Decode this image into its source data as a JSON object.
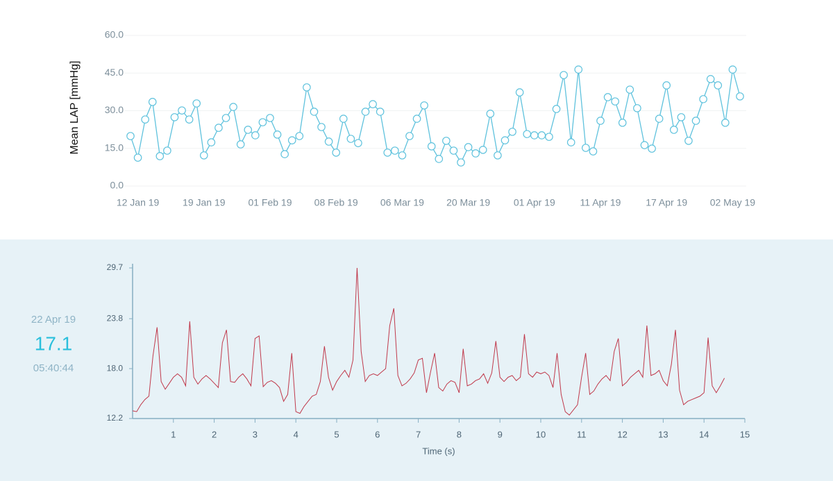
{
  "selection": {
    "date": "22 Apr 19",
    "value": 17.1,
    "time": "05:40:44"
  },
  "chart_data": [
    {
      "type": "line",
      "y_label": "Mean LAP [mmHg]",
      "color": "#5fc2dd",
      "markers": true,
      "grid": true,
      "categories": [
        null,
        "12 Jan 19",
        null,
        null,
        null,
        null,
        null,
        null,
        null,
        null,
        "19 Jan 19",
        null,
        null,
        null,
        null,
        null,
        null,
        null,
        null,
        "01 Feb 19",
        null,
        null,
        null,
        null,
        null,
        null,
        null,
        null,
        "08 Feb 19",
        null,
        null,
        null,
        null,
        null,
        null,
        null,
        null,
        "06 Mar 19",
        null,
        null,
        null,
        null,
        null,
        null,
        null,
        null,
        "20 Mar 19",
        null,
        null,
        null,
        null,
        null,
        null,
        null,
        null,
        "01 Apr 19",
        null,
        null,
        null,
        null,
        null,
        null,
        null,
        null,
        "11 Apr 19",
        null,
        null,
        null,
        null,
        null,
        null,
        null,
        null,
        "17 Apr 19",
        null,
        null,
        null,
        null,
        null,
        null,
        null,
        null,
        "02 May 19",
        null
      ],
      "values": [
        19.9,
        11.3,
        26.5,
        33.5,
        11.9,
        14.1,
        27.4,
        30.1,
        26.5,
        32.9,
        12.2,
        17.4,
        23.2,
        27.1,
        31.5,
        16.6,
        22.4,
        20.2,
        25.4,
        27.1,
        20.5,
        12.7,
        18.2,
        19.9,
        39.3,
        29.6,
        23.5,
        17.7,
        13.3,
        26.8,
        18.8,
        17.1,
        29.6,
        32.6,
        29.6,
        13.3,
        14.1,
        12.2,
        19.9,
        26.8,
        32.1,
        15.8,
        10.8,
        18.0,
        14.1,
        9.4,
        15.5,
        13.0,
        14.4,
        28.8,
        12.2,
        18.2,
        21.6,
        37.3,
        20.7,
        20.2,
        20.2,
        19.6,
        30.7,
        44.2,
        17.4,
        46.4,
        15.2,
        13.8,
        26.0,
        35.4,
        33.7,
        25.2,
        38.4,
        31.0,
        16.3,
        14.9,
        26.8,
        40.1,
        22.4,
        27.4,
        18.0,
        26.0,
        34.6,
        42.6,
        40.1,
        25.2,
        46.4,
        35.7
      ],
      "ylim": [
        0,
        60
      ],
      "yticks": [
        {
          "value": 0,
          "label": "0.0"
        },
        {
          "value": 15,
          "label": "15.0"
        },
        {
          "value": 30,
          "label": "30.0"
        },
        {
          "value": 45,
          "label": "45.0"
        },
        {
          "value": 60,
          "label": "60.0"
        }
      ]
    },
    {
      "type": "line",
      "x_label": "Time (s)",
      "color": "#c0394b",
      "markers": false,
      "grid": false,
      "x": [
        0,
        0.1,
        0.2,
        0.3,
        0.4,
        0.5,
        0.6,
        0.7,
        0.8,
        0.9,
        1,
        1.1,
        1.2,
        1.3,
        1.4,
        1.5,
        1.6,
        1.7,
        1.8,
        1.9,
        2,
        2.1,
        2.2,
        2.3,
        2.4,
        2.5,
        2.6,
        2.7,
        2.8,
        2.9,
        3,
        3.1,
        3.2,
        3.3,
        3.4,
        3.5,
        3.6,
        3.7,
        3.8,
        3.9,
        4,
        4.1,
        4.2,
        4.3,
        4.4,
        4.5,
        4.6,
        4.7,
        4.8,
        4.9,
        5,
        5.1,
        5.2,
        5.3,
        5.4,
        5.5,
        5.6,
        5.7,
        5.8,
        5.9,
        6,
        6.1,
        6.2,
        6.3,
        6.4,
        6.5,
        6.6,
        6.7,
        6.8,
        6.9,
        7,
        7.1,
        7.2,
        7.3,
        7.4,
        7.5,
        7.6,
        7.7,
        7.8,
        7.9,
        8,
        8.1,
        8.2,
        8.3,
        8.4,
        8.5,
        8.6,
        8.7,
        8.8,
        8.9,
        9,
        9.1,
        9.2,
        9.3,
        9.4,
        9.5,
        9.6,
        9.7,
        9.8,
        9.9,
        10,
        10.1,
        10.2,
        10.3,
        10.4,
        10.5,
        10.6,
        10.7,
        10.8,
        10.9,
        11,
        11.1,
        11.2,
        11.3,
        11.4,
        11.5,
        11.6,
        11.7,
        11.8,
        11.9,
        12,
        12.1,
        12.2,
        12.3,
        12.4,
        12.5,
        12.6,
        12.7,
        12.8,
        12.9,
        13,
        13.1,
        13.2,
        13.3,
        13.4,
        13.5,
        13.6,
        13.7,
        13.8,
        13.9,
        14,
        14.1,
        14.2,
        14.3,
        14.4,
        14.5
      ],
      "values": [
        13.1,
        13.0,
        13.8,
        14.4,
        14.8,
        19.5,
        22.8,
        16.5,
        15.6,
        16.3,
        17.0,
        17.4,
        17.0,
        16.0,
        23.5,
        17.0,
        16.2,
        16.8,
        17.2,
        16.8,
        16.3,
        15.8,
        21.0,
        22.5,
        16.5,
        16.4,
        17.0,
        17.4,
        16.8,
        16.0,
        21.5,
        21.8,
        15.9,
        16.4,
        16.6,
        16.3,
        15.8,
        14.2,
        15.0,
        19.8,
        13.0,
        12.8,
        13.6,
        14.2,
        14.8,
        15.0,
        16.5,
        20.6,
        17.0,
        15.5,
        16.5,
        17.2,
        17.8,
        17.0,
        19.0,
        29.7,
        20.0,
        16.5,
        17.2,
        17.4,
        17.2,
        17.6,
        18.0,
        23.0,
        25.0,
        17.2,
        16.0,
        16.3,
        16.8,
        17.5,
        19.0,
        19.2,
        15.2,
        17.6,
        19.8,
        15.8,
        15.4,
        16.2,
        16.6,
        16.4,
        15.2,
        20.3,
        16.0,
        16.2,
        16.6,
        16.8,
        17.4,
        16.3,
        17.5,
        21.2,
        17.0,
        16.5,
        17.0,
        17.2,
        16.6,
        17.0,
        22.0,
        17.4,
        17.0,
        17.6,
        17.4,
        17.6,
        17.2,
        15.8,
        19.8,
        15.0,
        13.0,
        12.6,
        13.2,
        13.8,
        17.0,
        19.8,
        15.0,
        15.4,
        16.2,
        16.8,
        17.2,
        16.6,
        20.0,
        21.5,
        16.0,
        16.4,
        17.0,
        17.4,
        17.8,
        17.0,
        23.0,
        17.2,
        17.4,
        17.8,
        16.6,
        16.0,
        18.5,
        22.5,
        15.5,
        13.8,
        14.2,
        14.4,
        14.6,
        14.8,
        15.2,
        21.6,
        16.0,
        15.2,
        16.0,
        16.9
      ],
      "xlim": [
        0,
        15
      ],
      "xticks": [
        1,
        2,
        3,
        4,
        5,
        6,
        7,
        8,
        9,
        10,
        11,
        12,
        13,
        14,
        15
      ],
      "ylim": [
        12.2,
        29.7
      ],
      "yticks": [
        12.2,
        {
          "value": 18,
          "label": "18.0"
        },
        23.8,
        29.7
      ]
    }
  ]
}
